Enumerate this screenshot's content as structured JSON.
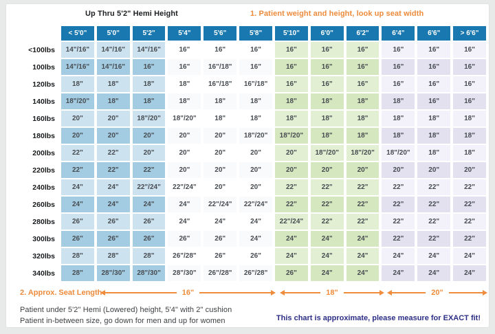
{
  "header": {
    "left_title": "Up Thru 5'2\" Hemi Height",
    "step1": "1. Patient weight and height, look up seat width"
  },
  "chart_data": {
    "type": "table",
    "title": "Wheelchair seat width by patient weight and height",
    "columns": [
      "< 5'0\"",
      "5'0\"",
      "5'2\"",
      "5'4\"",
      "5'6\"",
      "5'8\"",
      "5'10\"",
      "6'0\"",
      "6'2\"",
      "6'4\"",
      "6'6\"",
      "> 6'6\""
    ],
    "column_styles": [
      "blue",
      "blue",
      "blue",
      "plain",
      "plain",
      "plain",
      "green",
      "green",
      "green",
      "purple",
      "purple",
      "purple"
    ],
    "row_labels": [
      "<100lbs",
      "100lbs",
      "120lbs",
      "140lbs",
      "160lbs",
      "180lbs",
      "200lbs",
      "220lbs",
      "240lbs",
      "260lbs",
      "280lbs",
      "300lbs",
      "320lbs",
      "340lbs"
    ],
    "rows": [
      [
        "14\"/16\"",
        "14\"/16\"",
        "14\"/16\"",
        "16\"",
        "16\"",
        "16\"",
        "16\"",
        "16\"",
        "16\"",
        "16\"",
        "16\"",
        "16\""
      ],
      [
        "14\"/16\"",
        "14\"/16\"",
        "16\"",
        "16\"",
        "16\"/18\"",
        "16\"",
        "16\"",
        "16\"",
        "16\"",
        "16\"",
        "16\"",
        "16\""
      ],
      [
        "18\"",
        "18\"",
        "18\"",
        "18\"",
        "16\"/18\"",
        "16\"/18\"",
        "16\"",
        "16\"",
        "16\"",
        "16\"",
        "16\"",
        "16\""
      ],
      [
        "18\"/20\"",
        "18\"",
        "18\"",
        "18\"",
        "18\"",
        "18\"",
        "18\"",
        "18\"",
        "18\"",
        "18\"",
        "16\"",
        "16\""
      ],
      [
        "20\"",
        "20\"",
        "18\"/20\"",
        "18\"/20\"",
        "18\"",
        "18\"",
        "18\"",
        "18\"",
        "18\"",
        "18\"",
        "18\"",
        "18\""
      ],
      [
        "20\"",
        "20\"",
        "20\"",
        "20\"",
        "20\"",
        "18\"/20\"",
        "18\"/20\"",
        "18\"",
        "18\"",
        "18\"",
        "18\"",
        "18\""
      ],
      [
        "22\"",
        "22\"",
        "20\"",
        "20\"",
        "20\"",
        "20\"",
        "20\"",
        "18\"/20\"",
        "18\"/20\"",
        "18\"/20\"",
        "18\"",
        "18\""
      ],
      [
        "22\"",
        "22\"",
        "22\"",
        "20\"",
        "20\"",
        "20\"",
        "20\"",
        "20\"",
        "20\"",
        "20\"",
        "20\"",
        "20\""
      ],
      [
        "24\"",
        "24\"",
        "22\"/24\"",
        "22\"/24\"",
        "20\"",
        "20\"",
        "22\"",
        "22\"",
        "22\"",
        "22\"",
        "22\"",
        "22\""
      ],
      [
        "24\"",
        "24\"",
        "24\"",
        "24\"",
        "22\"/24\"",
        "22\"/24\"",
        "22\"",
        "22\"",
        "22\"",
        "22\"",
        "22\"",
        "22\""
      ],
      [
        "26\"",
        "26\"",
        "26\"",
        "24\"",
        "24\"",
        "24\"",
        "22\"/24\"",
        "22\"",
        "22\"",
        "22\"",
        "22\"",
        "22\""
      ],
      [
        "26\"",
        "26\"",
        "26\"",
        "26\"",
        "26\"",
        "24\"",
        "24\"",
        "24\"",
        "24\"",
        "22\"",
        "22\"",
        "22\""
      ],
      [
        "28\"",
        "28\"",
        "28\"",
        "26\"/28\"",
        "26\"",
        "26\"",
        "24\"",
        "24\"",
        "24\"",
        "24\"",
        "24\"",
        "24\""
      ],
      [
        "28\"",
        "28\"/30\"",
        "28\"/30\"",
        "28\"/30\"",
        "26\"/28\"",
        "26\"/28\"",
        "26\"",
        "24\"",
        "24\"",
        "24\"",
        "24\"",
        "24\""
      ]
    ]
  },
  "seat_length": {
    "step2": "2. Approx. Seat Length",
    "segments": [
      {
        "label": "16\""
      },
      {
        "label": "18\""
      },
      {
        "label": "20\""
      }
    ]
  },
  "footer": {
    "note1": "Patient under 5'2\" Hemi (Lowered) height, 5'4\" with 2\" cushion",
    "note2": "Patient in-between size, go down for men and up for women",
    "warning": "This chart is approximate, please measure for EXACT fit!"
  },
  "colors": {
    "header_blue": "#1878af",
    "blue_light": "#cde2ef",
    "blue_dark": "#a3cce2",
    "green_light": "#e2efd2",
    "green_dark": "#d5e7bf",
    "purple_light": "#f3f1f9",
    "purple_dark": "#e3e0f0",
    "accent_orange": "#ed8a3b",
    "accent_navy": "#2c2e86"
  }
}
